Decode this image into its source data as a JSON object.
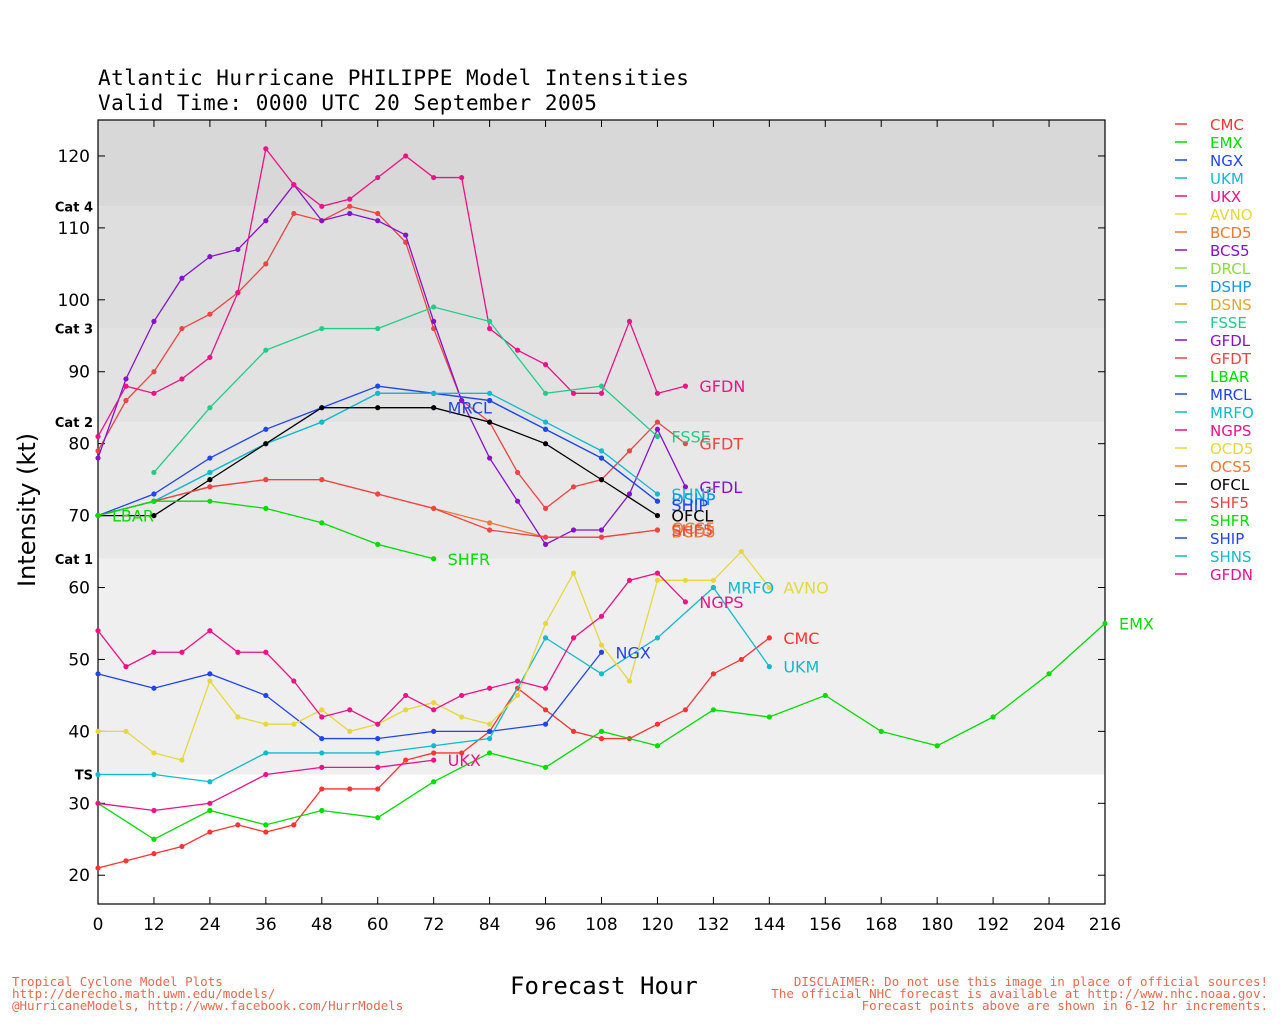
{
  "title": {
    "line1": "Atlantic Hurricane PHILIPPE Model Intensities",
    "line2": "Valid Time: 0000 UTC 20 September 2005"
  },
  "footer": {
    "left": [
      "Tropical Cyclone Model Plots",
      "http://derecho.math.uwm.edu/models/",
      "@HurricaneModels, http://www.facebook.com/HurrModels"
    ],
    "right": [
      "DISCLAIMER: Do not use this image in place of official sources!",
      "The official NHC forecast is available at http://www.nhc.noaa.gov.",
      "Forecast points above are shown in 6-12 hr increments."
    ]
  },
  "chart_data": {
    "type": "line",
    "xlabel": "Forecast Hour",
    "ylabel": "Intensity (kt)",
    "xlim": [
      0,
      216
    ],
    "ylim": [
      16,
      125
    ],
    "xticks": [
      0,
      12,
      24,
      36,
      48,
      60,
      72,
      84,
      96,
      108,
      120,
      132,
      144,
      156,
      168,
      180,
      192,
      204,
      216
    ],
    "yticks": [
      20,
      30,
      40,
      50,
      60,
      70,
      80,
      90,
      100,
      110,
      120
    ],
    "bands": [
      {
        "from": 34,
        "to": 64,
        "color": "#efefef"
      },
      {
        "from": 64,
        "to": 83,
        "color": "#e8e8e8"
      },
      {
        "from": 83,
        "to": 96,
        "color": "#e2e2e2"
      },
      {
        "from": 96,
        "to": 113,
        "color": "#dedede"
      },
      {
        "from": 113,
        "to": 125,
        "color": "#d8d8d8"
      }
    ],
    "category_labels": [
      {
        "text": "TS",
        "y": 34
      },
      {
        "text": "Cat 1",
        "y": 64
      },
      {
        "text": "Cat 2",
        "y": 83
      },
      {
        "text": "Cat 3",
        "y": 96
      },
      {
        "text": "Cat 4",
        "y": 113
      }
    ],
    "legend": [
      "CMC",
      "EMX",
      "NGX",
      "UKM",
      "UKX",
      "AVNO",
      "BCD5",
      "BCS5",
      "DRCL",
      "DSHP",
      "DSNS",
      "FSSE",
      "GFDL",
      "GFDT",
      "LBAR",
      "MRCL",
      "MRFO",
      "NGPS",
      "OCD5",
      "OCS5",
      "OFCL",
      "SHF5",
      "SHFR",
      "SHIP",
      "SHNS",
      "GFDN"
    ],
    "series": [
      {
        "name": "CMC",
        "color": "#ff3333",
        "label": "CMC",
        "x": [
          0,
          6,
          12,
          18,
          24,
          30,
          36,
          42,
          48,
          54,
          60,
          66,
          72,
          78,
          84,
          90,
          96,
          102,
          108,
          114,
          120,
          126,
          132,
          138,
          144
        ],
        "y": [
          21,
          22,
          23,
          24,
          26,
          27,
          26,
          27,
          32,
          32,
          32,
          36,
          37,
          37,
          40,
          46,
          43,
          40,
          39,
          39,
          41,
          43,
          48,
          50,
          53
        ]
      },
      {
        "name": "EMX",
        "color": "#00dd00",
        "label": "EMX",
        "x": [
          0,
          12,
          24,
          36,
          48,
          60,
          72,
          84,
          96,
          108,
          120,
          132,
          144,
          156,
          168,
          180,
          192,
          204,
          216
        ],
        "y": [
          30,
          25,
          29,
          27,
          29,
          28,
          33,
          37,
          35,
          40,
          38,
          43,
          42,
          45,
          40,
          38,
          42,
          48,
          55
        ]
      },
      {
        "name": "NGX",
        "color": "#2244ee",
        "label": "NGX",
        "x": [
          0,
          12,
          24,
          36,
          48,
          60,
          72,
          84,
          96,
          108
        ],
        "y": [
          48,
          46,
          48,
          45,
          39,
          39,
          40,
          40,
          41,
          51
        ]
      },
      {
        "name": "UKM",
        "color": "#11bbcc",
        "label": "UKM",
        "x": [
          0,
          12,
          24,
          36,
          48,
          60,
          72,
          84,
          96,
          108,
          120,
          132,
          144
        ],
        "y": [
          34,
          34,
          33,
          37,
          37,
          37,
          38,
          39,
          53,
          48,
          53,
          60,
          49
        ]
      },
      {
        "name": "UKX",
        "color": "#ee1188",
        "label": "UKX",
        "x": [
          0,
          12,
          24,
          36,
          48,
          60,
          72
        ],
        "y": [
          30,
          29,
          30,
          34,
          35,
          35,
          36
        ]
      },
      {
        "name": "AVNO",
        "color": "#e6d83a",
        "label": "AVNO",
        "x": [
          0,
          6,
          12,
          18,
          24,
          30,
          36,
          42,
          48,
          54,
          60,
          66,
          72,
          78,
          84,
          90,
          96,
          102,
          108,
          114,
          120,
          126,
          132,
          138,
          144
        ],
        "y": [
          40,
          40,
          37,
          36,
          47,
          42,
          41,
          41,
          43,
          40,
          41,
          43,
          44,
          42,
          41,
          45,
          55,
          62,
          52,
          47,
          61,
          61,
          61,
          65,
          60
        ]
      },
      {
        "name": "BCD5",
        "color": "#ee7733",
        "label": "",
        "x": [
          0,
          12,
          24,
          36,
          48,
          60,
          72,
          84,
          96,
          108,
          120
        ],
        "y": [
          70,
          72,
          74,
          75,
          75,
          73,
          71,
          69,
          67,
          67,
          68
        ]
      },
      {
        "name": "GFDT",
        "color": "#ee4444",
        "label": "GFDT",
        "x": [
          0,
          6,
          12,
          18,
          24,
          30,
          36,
          42,
          48,
          54,
          60,
          66,
          72,
          78,
          84,
          90,
          96,
          102,
          108,
          114,
          120,
          126
        ],
        "y": [
          79,
          86,
          90,
          96,
          98,
          101,
          105,
          112,
          111,
          113,
          112,
          108,
          96,
          86,
          83,
          76,
          71,
          74,
          75,
          79,
          83,
          80
        ]
      },
      {
        "name": "GFDL",
        "color": "#8811cc",
        "label": "GFDL",
        "x": [
          0,
          6,
          12,
          18,
          24,
          30,
          36,
          42,
          48,
          54,
          60,
          66,
          72,
          78,
          84,
          90,
          96,
          102,
          108,
          114,
          120,
          126
        ],
        "y": [
          78,
          89,
          97,
          103,
          106,
          107,
          111,
          116,
          111,
          112,
          111,
          109,
          97,
          86,
          78,
          72,
          66,
          68,
          68,
          73,
          82,
          74
        ]
      },
      {
        "name": "GFDN",
        "color": "#ee1188",
        "label": "GFDN",
        "x": [
          0,
          6,
          12,
          18,
          24,
          30,
          36,
          42,
          48,
          54,
          60,
          66,
          72,
          78,
          84,
          90,
          96,
          102,
          108,
          114,
          120,
          126
        ],
        "y": [
          81,
          88,
          87,
          89,
          92,
          101,
          121,
          116,
          113,
          114,
          117,
          120,
          117,
          117,
          96,
          93,
          91,
          87,
          87,
          97,
          87,
          88
        ]
      },
      {
        "name": "FSSE",
        "color": "#22cc88",
        "label": "FSSE",
        "x": [
          12,
          24,
          36,
          48,
          60,
          72,
          84,
          96,
          108,
          120
        ],
        "y": [
          76,
          85,
          93,
          96,
          96,
          99,
          97,
          87,
          88,
          81
        ]
      },
      {
        "name": "DSHP",
        "color": "#1199ee",
        "label": "",
        "x": [
          0,
          12,
          24,
          36,
          48,
          60,
          72,
          84,
          96,
          108,
          120
        ],
        "y": [
          70,
          72,
          76,
          80,
          83,
          87,
          87,
          86,
          82,
          78,
          72
        ]
      },
      {
        "name": "SHIP",
        "color": "#2244ee",
        "label": "SHIP",
        "x": [
          0,
          12,
          24,
          36,
          48,
          60,
          72,
          84,
          96,
          108,
          120
        ],
        "y": [
          70,
          73,
          78,
          82,
          85,
          88,
          87,
          86,
          82,
          78,
          72
        ]
      },
      {
        "name": "SHNS",
        "color": "#11bbcc",
        "label": "SHNS",
        "x": [
          0,
          12,
          24,
          36,
          48,
          60,
          72,
          84,
          96,
          108,
          120
        ],
        "y": [
          70,
          72,
          76,
          80,
          83,
          87,
          87,
          87,
          83,
          79,
          73
        ]
      },
      {
        "name": "MRCL",
        "color": "#2244ee",
        "label": "MRCL",
        "x": [
          72
        ],
        "y": [
          85
        ]
      },
      {
        "name": "OCD5",
        "color": "#e6d83a",
        "label": "",
        "x": [
          60
        ],
        "y": [
          85
        ]
      },
      {
        "name": "OFCL",
        "color": "#000000",
        "label": "OFCL",
        "x": [
          0,
          12,
          24,
          36,
          48,
          60,
          72,
          84,
          96,
          108,
          120
        ],
        "y": [
          70,
          70,
          75,
          80,
          85,
          85,
          85,
          83,
          80,
          75,
          70
        ]
      },
      {
        "name": "SHF5",
        "color": "#ee4444",
        "label": "SHF5",
        "x": [
          0,
          12,
          24,
          36,
          48,
          60,
          72,
          84,
          96,
          108,
          120
        ],
        "y": [
          70,
          72,
          74,
          75,
          75,
          73,
          71,
          68,
          67,
          67,
          68
        ]
      },
      {
        "name": "SHFR",
        "color": "#00dd00",
        "label": "SHFR",
        "x": [
          0,
          12,
          24,
          36,
          48,
          60,
          72
        ],
        "y": [
          70,
          72,
          72,
          71,
          69,
          66,
          64
        ]
      },
      {
        "name": "LBAR",
        "color": "#00dd00",
        "label": "LBAR",
        "x": [
          0
        ],
        "y": [
          70
        ]
      },
      {
        "name": "MRFO",
        "color": "#11bbcc",
        "label": "MRFO",
        "x": [
          132
        ],
        "y": [
          60
        ]
      },
      {
        "name": "NGPS",
        "color": "#ee1188",
        "label": "NGPS",
        "x": [
          0,
          6,
          12,
          18,
          24,
          30,
          36,
          42,
          48,
          54,
          60,
          66,
          72,
          78,
          84,
          90,
          96,
          102,
          108,
          114,
          120,
          126
        ],
        "y": [
          54,
          49,
          51,
          51,
          54,
          51,
          51,
          47,
          42,
          43,
          41,
          45,
          43,
          45,
          46,
          47,
          46,
          53,
          56,
          61,
          62,
          58
        ]
      }
    ],
    "end_labels": [
      {
        "text": "GFDN",
        "color": "#ee1188",
        "x": 129,
        "y": 88
      },
      {
        "text": "FSSE",
        "color": "#22cc88",
        "x": 123,
        "y": 81
      },
      {
        "text": "GFDT",
        "color": "#ee4444",
        "x": 129,
        "y": 80
      },
      {
        "text": "MRCL",
        "color": "#2244ee",
        "x": 75,
        "y": 85
      },
      {
        "text": "GFDL",
        "color": "#8811cc",
        "x": 129,
        "y": 74
      },
      {
        "text": "SHNS",
        "color": "#11bbcc",
        "x": 123,
        "y": 73
      },
      {
        "text": "DSHP",
        "color": "#1199ee",
        "x": 123,
        "y": 72.3
      },
      {
        "text": "SHIP",
        "color": "#2244ee",
        "x": 123,
        "y": 71.5
      },
      {
        "text": "OFCL",
        "color": "#000000",
        "x": 123,
        "y": 70
      },
      {
        "text": "OCS5",
        "color": "#ee7733",
        "x": 123,
        "y": 68.3
      },
      {
        "text": "BCD5",
        "color": "#ee7733",
        "x": 123,
        "y": 67.8
      },
      {
        "text": "SHF5",
        "color": "#ee4444",
        "x": 123,
        "y": 68
      },
      {
        "text": "LBAR",
        "color": "#00dd00",
        "x": 3,
        "y": 70
      },
      {
        "text": "SHFR",
        "color": "#00dd00",
        "x": 75,
        "y": 64
      },
      {
        "text": "MRFO",
        "color": "#11bbcc",
        "x": 135,
        "y": 60
      },
      {
        "text": "AVNO",
        "color": "#e6d83a",
        "x": 147,
        "y": 60
      },
      {
        "text": "NGPS",
        "color": "#ee1188",
        "x": 129,
        "y": 58
      },
      {
        "text": "CMC",
        "color": "#ff3333",
        "x": 147,
        "y": 53
      },
      {
        "text": "NGX",
        "color": "#2244ee",
        "x": 111,
        "y": 51
      },
      {
        "text": "UKM",
        "color": "#11bbcc",
        "x": 147,
        "y": 49
      },
      {
        "text": "UKX",
        "color": "#ee1188",
        "x": 75,
        "y": 36
      },
      {
        "text": "EMX",
        "color": "#00dd00",
        "x": 219,
        "y": 55
      }
    ]
  },
  "legend_colors": {
    "CMC": "#ff3333",
    "EMX": "#00dd00",
    "NGX": "#2244ee",
    "UKM": "#11bbcc",
    "UKX": "#ee1188",
    "AVNO": "#e6d83a",
    "BCD5": "#ee7733",
    "BCS5": "#8811cc",
    "DRCL": "#88dd44",
    "DSHP": "#1199ee",
    "DSNS": "#ddaa33",
    "FSSE": "#22cc88",
    "GFDL": "#8811cc",
    "GFDT": "#ee4444",
    "LBAR": "#00dd00",
    "MRCL": "#2244ee",
    "MRFO": "#11bbcc",
    "NGPS": "#ee1188",
    "OCD5": "#e6d83a",
    "OCS5": "#ee7733",
    "OFCL": "#000000",
    "SHF5": "#ee4444",
    "SHFR": "#00dd00",
    "SHIP": "#2244ee",
    "SHNS": "#11bbcc",
    "GFDN": "#ee1188"
  }
}
